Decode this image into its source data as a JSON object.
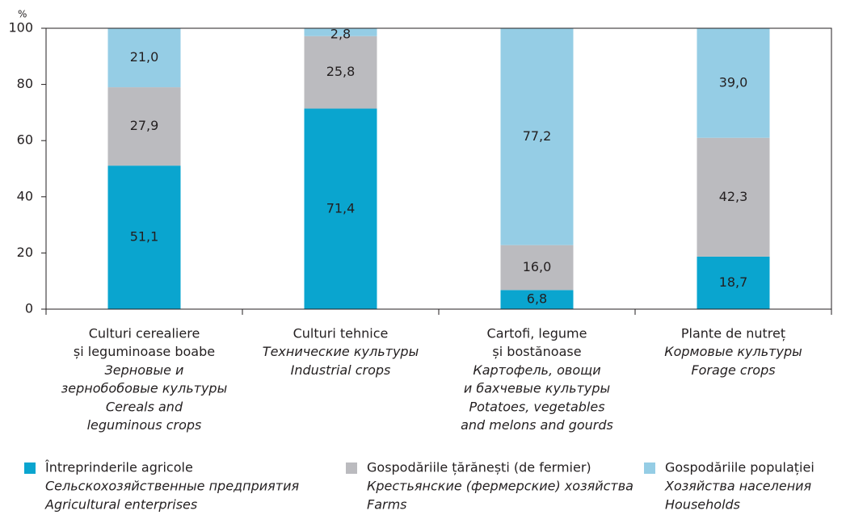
{
  "chart_data": {
    "type": "stacked_bar",
    "y_label": "%",
    "categories": [
      {
        "ro": [
          "Culturi cerealiere",
          "și leguminoase boabe"
        ],
        "ru": [
          "Зерновые и",
          "зернобобовые культуры"
        ],
        "en": [
          "Cereals and",
          "leguminous crops"
        ]
      },
      {
        "ro": [
          "Culturi tehnice"
        ],
        "ru": [
          "Технические культуры"
        ],
        "en": [
          "Industrial crops"
        ]
      },
      {
        "ro": [
          "Cartofi, legume",
          "și bostănoase"
        ],
        "ru": [
          "Картофель, овощи",
          "и бахчевые культуры"
        ],
        "en": [
          "Potatoes, vegetables",
          "and melons and gourds"
        ]
      },
      {
        "ro": [
          "Plante de nutreț"
        ],
        "ru": [
          "Кормовые культуры"
        ],
        "en": [
          "Forage crops"
        ]
      }
    ],
    "series": [
      {
        "name": [
          "Întreprinderile agricole",
          "Сельскохозяйственные предприятия",
          "Agricultural enterprises"
        ],
        "color": "#0aa5cf",
        "values": [
          51.1,
          71.4,
          6.8,
          18.7
        ],
        "value_labels": [
          "51,1",
          "71,4",
          "6,8",
          "18,7"
        ]
      },
      {
        "name": [
          "Gospodăriile țărănești (de fermier)",
          "Крестьянские (фермерские) хозяйства",
          "Farms"
        ],
        "color": "#bbbbbf",
        "values": [
          27.9,
          25.8,
          16.0,
          42.3
        ],
        "value_labels": [
          "27,9",
          "25,8",
          "16,0",
          "42,3"
        ]
      },
      {
        "name": [
          "Gospodăriile populației",
          "Хозяйства населения",
          "Households"
        ],
        "color": "#95cde5",
        "values": [
          21.0,
          2.8,
          77.2,
          39.0
        ],
        "value_labels": [
          "21,0",
          "2,8",
          "77,2",
          "39,0"
        ]
      }
    ],
    "ylim": [
      0,
      100
    ],
    "yticks": [
      0,
      20,
      40,
      60,
      80,
      100
    ]
  }
}
